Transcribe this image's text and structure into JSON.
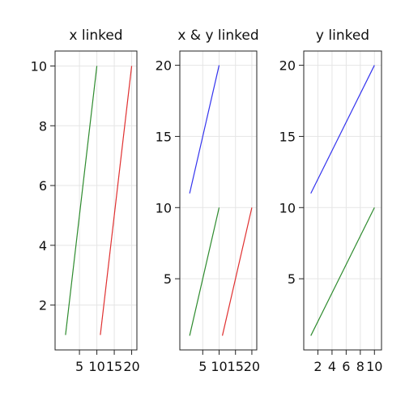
{
  "chart_data": [
    {
      "type": "line",
      "title": "x linked",
      "xlabel": "",
      "ylabel": "",
      "xlim": [
        -2,
        21.5
      ],
      "ylim": [
        0.5,
        10.5
      ],
      "xticks": [
        5,
        10,
        15,
        20
      ],
      "xtick_labels": [
        "5",
        "10",
        "15",
        "20"
      ],
      "yticks": [
        2,
        4,
        6,
        8,
        10
      ],
      "ytick_labels": [
        "2",
        "4",
        "6",
        "8",
        "10"
      ],
      "grid": true,
      "series": [
        {
          "color": "#2e8b2e",
          "x": [
            1,
            10
          ],
          "y": [
            1,
            10
          ]
        },
        {
          "color": "#e03030",
          "x": [
            11,
            20
          ],
          "y": [
            1,
            10
          ]
        }
      ]
    },
    {
      "type": "line",
      "title": "x & y linked",
      "xlabel": "",
      "ylabel": "",
      "xlim": [
        -2,
        21.5
      ],
      "ylim": [
        0,
        21
      ],
      "xticks": [
        5,
        10,
        15,
        20
      ],
      "xtick_labels": [
        "5",
        "10",
        "15",
        "20"
      ],
      "yticks": [
        5,
        10,
        15,
        20
      ],
      "ytick_labels": [
        "5",
        "10",
        "15",
        "20"
      ],
      "grid": true,
      "series": [
        {
          "color": "#3333ee",
          "x": [
            1,
            10
          ],
          "y": [
            11,
            20
          ]
        },
        {
          "color": "#2e8b2e",
          "x": [
            1,
            10
          ],
          "y": [
            1,
            10
          ]
        },
        {
          "color": "#e03030",
          "x": [
            11,
            20
          ],
          "y": [
            1,
            10
          ]
        }
      ]
    },
    {
      "type": "line",
      "title": "y linked",
      "xlabel": "",
      "ylabel": "",
      "xlim": [
        0,
        11
      ],
      "ylim": [
        0,
        21
      ],
      "xticks": [
        2,
        4,
        6,
        8,
        10
      ],
      "xtick_labels": [
        "2",
        "4",
        "6",
        "8",
        "10"
      ],
      "yticks": [
        5,
        10,
        15,
        20
      ],
      "ytick_labels": [
        "5",
        "10",
        "15",
        "20"
      ],
      "grid": true,
      "series": [
        {
          "color": "#3333ee",
          "x": [
            1,
            10
          ],
          "y": [
            11,
            20
          ]
        },
        {
          "color": "#2e8b2e",
          "x": [
            1,
            10
          ],
          "y": [
            1,
            10
          ]
        }
      ]
    }
  ]
}
